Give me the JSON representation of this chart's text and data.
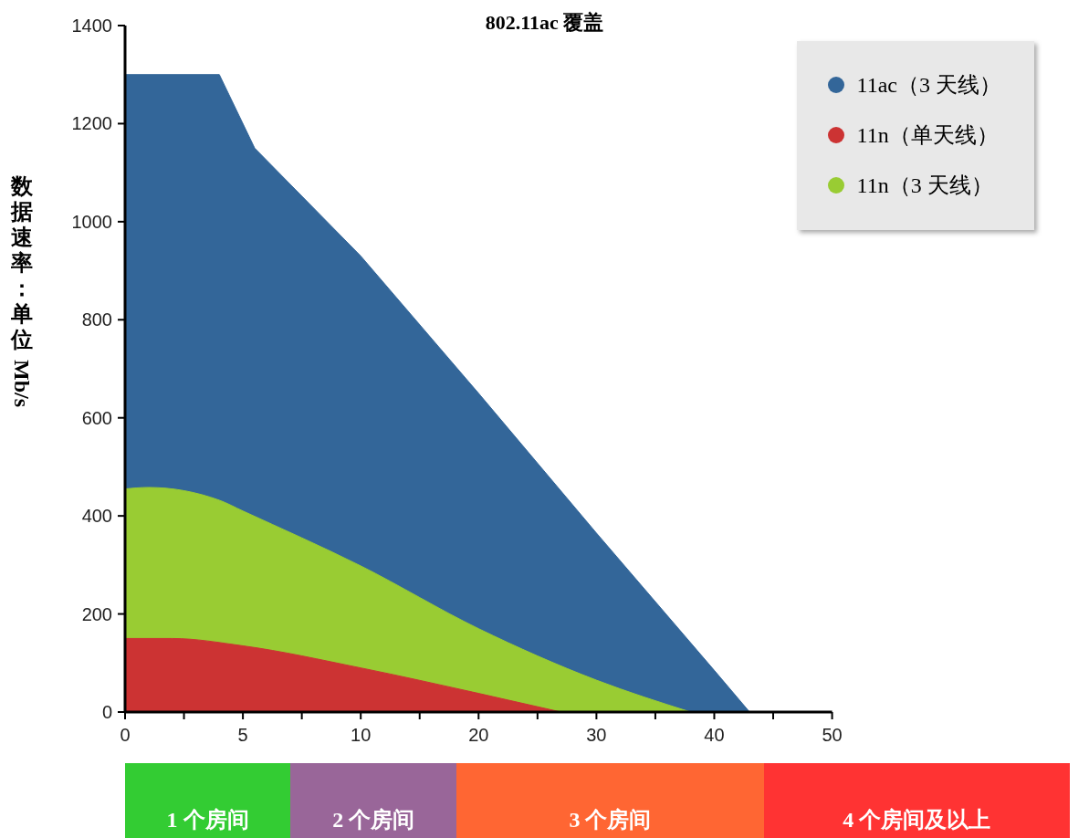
{
  "chart_data": {
    "type": "area",
    "title": "802.11ac 覆盖",
    "ylabel": "数据速率：单位 Mb/s",
    "categories": [
      "0",
      null,
      null,
      null,
      null,
      null,
      null,
      null,
      null,
      null,
      "5",
      null,
      null,
      null,
      null,
      null,
      null,
      null,
      null,
      null,
      "10",
      null,
      null,
      null,
      null,
      null,
      null,
      null,
      null,
      null,
      "20",
      null,
      null,
      null,
      null,
      null,
      null,
      null,
      null,
      null,
      "30",
      null,
      null,
      null,
      null,
      null,
      null,
      null,
      null,
      null,
      "40",
      null,
      null,
      null,
      null,
      null,
      null,
      null,
      null,
      null,
      "50"
    ],
    "ylim": [
      0,
      1400
    ],
    "yticks": [
      0,
      200,
      400,
      600,
      800,
      1000,
      1200,
      1400
    ],
    "legend": "top right",
    "series": [
      {
        "name": "11ac（3 天线）",
        "color": "#336699",
        "values": [
          1300,
          null,
          null,
          null,
          null,
          null,
          null,
          null,
          1300,
          null,
          null,
          1150,
          null,
          null,
          null,
          null,
          null,
          null,
          null,
          null,
          930,
          null,
          null,
          null,
          null,
          null,
          null,
          null,
          null,
          null,
          650,
          null,
          null,
          null,
          null,
          null,
          null,
          null,
          null,
          null,
          365,
          null,
          null,
          null,
          null,
          null,
          null,
          null,
          null,
          null,
          85,
          null,
          null,
          0,
          null,
          null,
          null,
          null,
          null,
          null,
          null
        ]
      },
      {
        "name": "11n（3 天线）",
        "color": "#99cc33",
        "values": [
          455,
          null,
          458,
          null,
          null,
          null,
          null,
          null,
          432,
          null,
          410,
          null,
          null,
          null,
          null,
          null,
          null,
          null,
          null,
          null,
          298,
          null,
          null,
          null,
          null,
          null,
          null,
          null,
          null,
          null,
          170,
          null,
          null,
          null,
          null,
          null,
          null,
          null,
          null,
          null,
          65,
          null,
          null,
          null,
          null,
          null,
          null,
          null,
          0,
          null,
          null,
          null,
          null,
          null,
          null,
          null,
          null,
          null,
          null,
          null,
          null
        ]
      },
      {
        "name": "11n（单天线）",
        "color": "#cc3333",
        "values": [
          150,
          null,
          null,
          null,
          150,
          null,
          null,
          null,
          null,
          null,
          135,
          null,
          null,
          null,
          null,
          null,
          null,
          null,
          null,
          null,
          90,
          null,
          null,
          null,
          null,
          null,
          null,
          null,
          null,
          null,
          38,
          null,
          null,
          null,
          null,
          null,
          null,
          0,
          null,
          null,
          null,
          null,
          null,
          null,
          null,
          null,
          null,
          null,
          null,
          null,
          null,
          null,
          null,
          null,
          null,
          null,
          null,
          null,
          null,
          null,
          null
        ]
      }
    ],
    "annotations": [
      "1 个房间",
      "2 个房间",
      "3 个房间",
      "4 个房间及以上"
    ]
  }
}
